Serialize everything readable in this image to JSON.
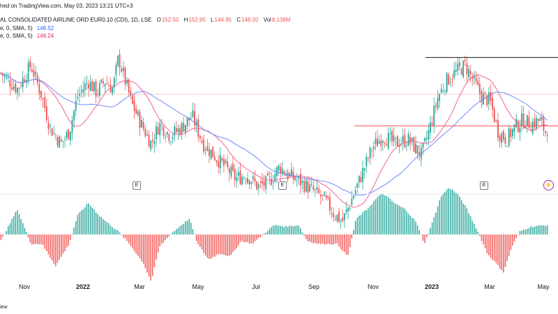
{
  "header": {
    "published": "hed on TradingView.com, May 03, 2023 13:21 UTC+3",
    "symbol": "AL CONSOLIDATED AIRLINE ORD EUR0.10 (CDI), 1D, LSE",
    "o_label": "O",
    "o": "152.50",
    "h_label": "H",
    "h": "152.95",
    "l_label": "L",
    "l": "144.95",
    "c_label": "C",
    "c": "148.20",
    "vol_label": "Vol",
    "vol": "8.138M",
    "ma1": "e, 0, SMA, 5)",
    "ma1_value": "148.52",
    "ma2": "e, 0, SMA, 5)",
    "ma2_value": "148.24"
  },
  "colors": {
    "up": "#26a69a",
    "down": "#ef5350",
    "ma_blue": "#6b8cff",
    "ma_pink": "#f06292",
    "line": "#131722",
    "red_line": "#ef5350"
  },
  "x_ticks": [
    {
      "label": "Nov",
      "bold": false
    },
    {
      "label": "2022",
      "bold": true
    },
    {
      "label": "Mar",
      "bold": false
    },
    {
      "label": "May",
      "bold": false
    },
    {
      "label": "Jul",
      "bold": false
    },
    {
      "label": "Sep",
      "bold": false
    },
    {
      "label": "Nov",
      "bold": false
    },
    {
      "label": "2023",
      "bold": true
    },
    {
      "label": "Mar",
      "bold": false
    },
    {
      "label": "May",
      "bold": false
    }
  ],
  "earnings_marker": "E",
  "footer": "iew",
  "chart_data": {
    "type": "candlestick",
    "price_anchors": [
      [
        0,
        164
      ],
      [
        0.03,
        160
      ],
      [
        0.055,
        166
      ],
      [
        0.075,
        158
      ],
      [
        0.09,
        150
      ],
      [
        0.11,
        146
      ],
      [
        0.125,
        149
      ],
      [
        0.14,
        158
      ],
      [
        0.16,
        162
      ],
      [
        0.175,
        159
      ],
      [
        0.19,
        162
      ],
      [
        0.205,
        160
      ],
      [
        0.215,
        168
      ],
      [
        0.24,
        156
      ],
      [
        0.26,
        150
      ],
      [
        0.275,
        146
      ],
      [
        0.29,
        151
      ],
      [
        0.31,
        148
      ],
      [
        0.33,
        150
      ],
      [
        0.35,
        153
      ],
      [
        0.37,
        146
      ],
      [
        0.39,
        143
      ],
      [
        0.41,
        140
      ],
      [
        0.43,
        137
      ],
      [
        0.45,
        138
      ],
      [
        0.47,
        135
      ],
      [
        0.49,
        136
      ],
      [
        0.51,
        140
      ],
      [
        0.525,
        138
      ],
      [
        0.55,
        136
      ],
      [
        0.57,
        134
      ],
      [
        0.59,
        132
      ],
      [
        0.61,
        128
      ],
      [
        0.625,
        126
      ],
      [
        0.64,
        131
      ],
      [
        0.66,
        138
      ],
      [
        0.68,
        145
      ],
      [
        0.7,
        148
      ],
      [
        0.72,
        146
      ],
      [
        0.745,
        147
      ],
      [
        0.77,
        143
      ],
      [
        0.785,
        150
      ],
      [
        0.8,
        158
      ],
      [
        0.815,
        162
      ],
      [
        0.83,
        164
      ],
      [
        0.85,
        166
      ],
      [
        0.865,
        162
      ],
      [
        0.88,
        158
      ],
      [
        0.895,
        157
      ],
      [
        0.91,
        149
      ],
      [
        0.925,
        147
      ],
      [
        0.94,
        150
      ],
      [
        0.955,
        152
      ],
      [
        0.97,
        151
      ],
      [
        0.985,
        152
      ],
      [
        1,
        148.2
      ]
    ],
    "resistance_level": 168,
    "support_level": 150.5,
    "ma_periods": [
      20,
      40
    ],
    "histogram_anchors": [
      [
        0,
        -0.2
      ],
      [
        0.03,
        0.8
      ],
      [
        0.055,
        -0.3
      ],
      [
        0.075,
        -0.3
      ],
      [
        0.1,
        -1.0
      ],
      [
        0.125,
        -0.3
      ],
      [
        0.14,
        0.6
      ],
      [
        0.16,
        1.0
      ],
      [
        0.18,
        0.6
      ],
      [
        0.2,
        0.3
      ],
      [
        0.215,
        0.1
      ],
      [
        0.235,
        -0.3
      ],
      [
        0.26,
        -0.9
      ],
      [
        0.275,
        -1.5
      ],
      [
        0.29,
        -0.4
      ],
      [
        0.31,
        0.0
      ],
      [
        0.33,
        0.3
      ],
      [
        0.345,
        0.5
      ],
      [
        0.36,
        -0.3
      ],
      [
        0.38,
        -0.8
      ],
      [
        0.4,
        -0.6
      ],
      [
        0.42,
        -0.7
      ],
      [
        0.44,
        -0.2
      ],
      [
        0.46,
        -0.3
      ],
      [
        0.48,
        0.0
      ],
      [
        0.5,
        0.3
      ],
      [
        0.52,
        0.25
      ],
      [
        0.545,
        0.3
      ],
      [
        0.56,
        -0.2
      ],
      [
        0.58,
        -0.3
      ],
      [
        0.6,
        -0.3
      ],
      [
        0.615,
        -0.3
      ],
      [
        0.635,
        -0.7
      ],
      [
        0.65,
        0.5
      ],
      [
        0.67,
        0.8
      ],
      [
        0.69,
        1.2
      ],
      [
        0.7,
        1.3
      ],
      [
        0.72,
        1.0
      ],
      [
        0.74,
        0.8
      ],
      [
        0.76,
        0.4
      ],
      [
        0.775,
        -0.3
      ],
      [
        0.79,
        0.4
      ],
      [
        0.805,
        1.2
      ],
      [
        0.82,
        1.5
      ],
      [
        0.835,
        1.3
      ],
      [
        0.85,
        0.9
      ],
      [
        0.87,
        0.2
      ],
      [
        0.89,
        -0.6
      ],
      [
        0.905,
        -0.9
      ],
      [
        0.92,
        -1.2
      ],
      [
        0.935,
        -0.4
      ],
      [
        0.95,
        0.1
      ],
      [
        0.97,
        0.25
      ],
      [
        1,
        0.3
      ]
    ]
  }
}
